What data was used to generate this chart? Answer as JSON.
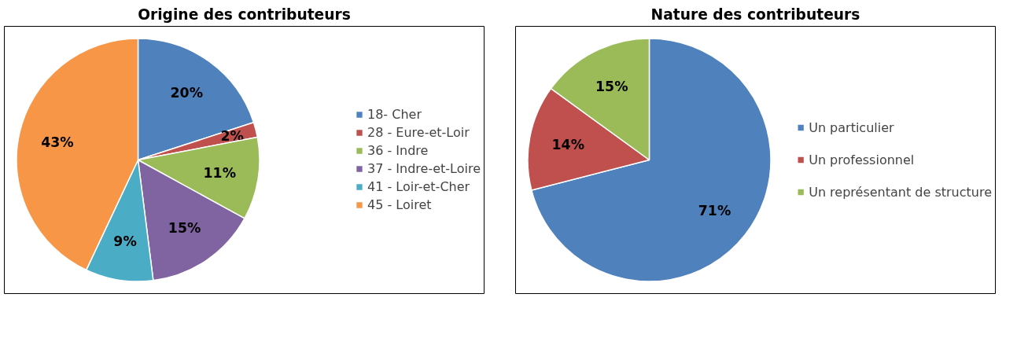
{
  "chart_data": [
    {
      "type": "pie",
      "title": "Origine des contributeurs",
      "categories": [
        "18- Cher",
        "28 - Eure-et-Loir",
        "36 - Indre",
        "37 - Indre-et-Loire",
        "41 - Loir-et-Cher",
        "45 - Loiret"
      ],
      "values": [
        20,
        2,
        11,
        15,
        9,
        43
      ],
      "value_labels": [
        "20%",
        "2%",
        "11%",
        "15%",
        "9%",
        "43%"
      ],
      "colors": [
        "#4f81bd",
        "#c0504d",
        "#9bbb59",
        "#8064a2",
        "#4bacc6",
        "#f79646"
      ],
      "legend": "right"
    },
    {
      "type": "pie",
      "title": "Nature des contributeurs",
      "categories": [
        "Un particulier",
        "Un professionnel",
        "Un représentant de structure"
      ],
      "values": [
        71,
        14,
        15
      ],
      "value_labels": [
        "71%",
        "14%",
        "15%"
      ],
      "colors": [
        "#4f81bd",
        "#c0504d",
        "#9bbb59"
      ],
      "legend": "right"
    }
  ]
}
